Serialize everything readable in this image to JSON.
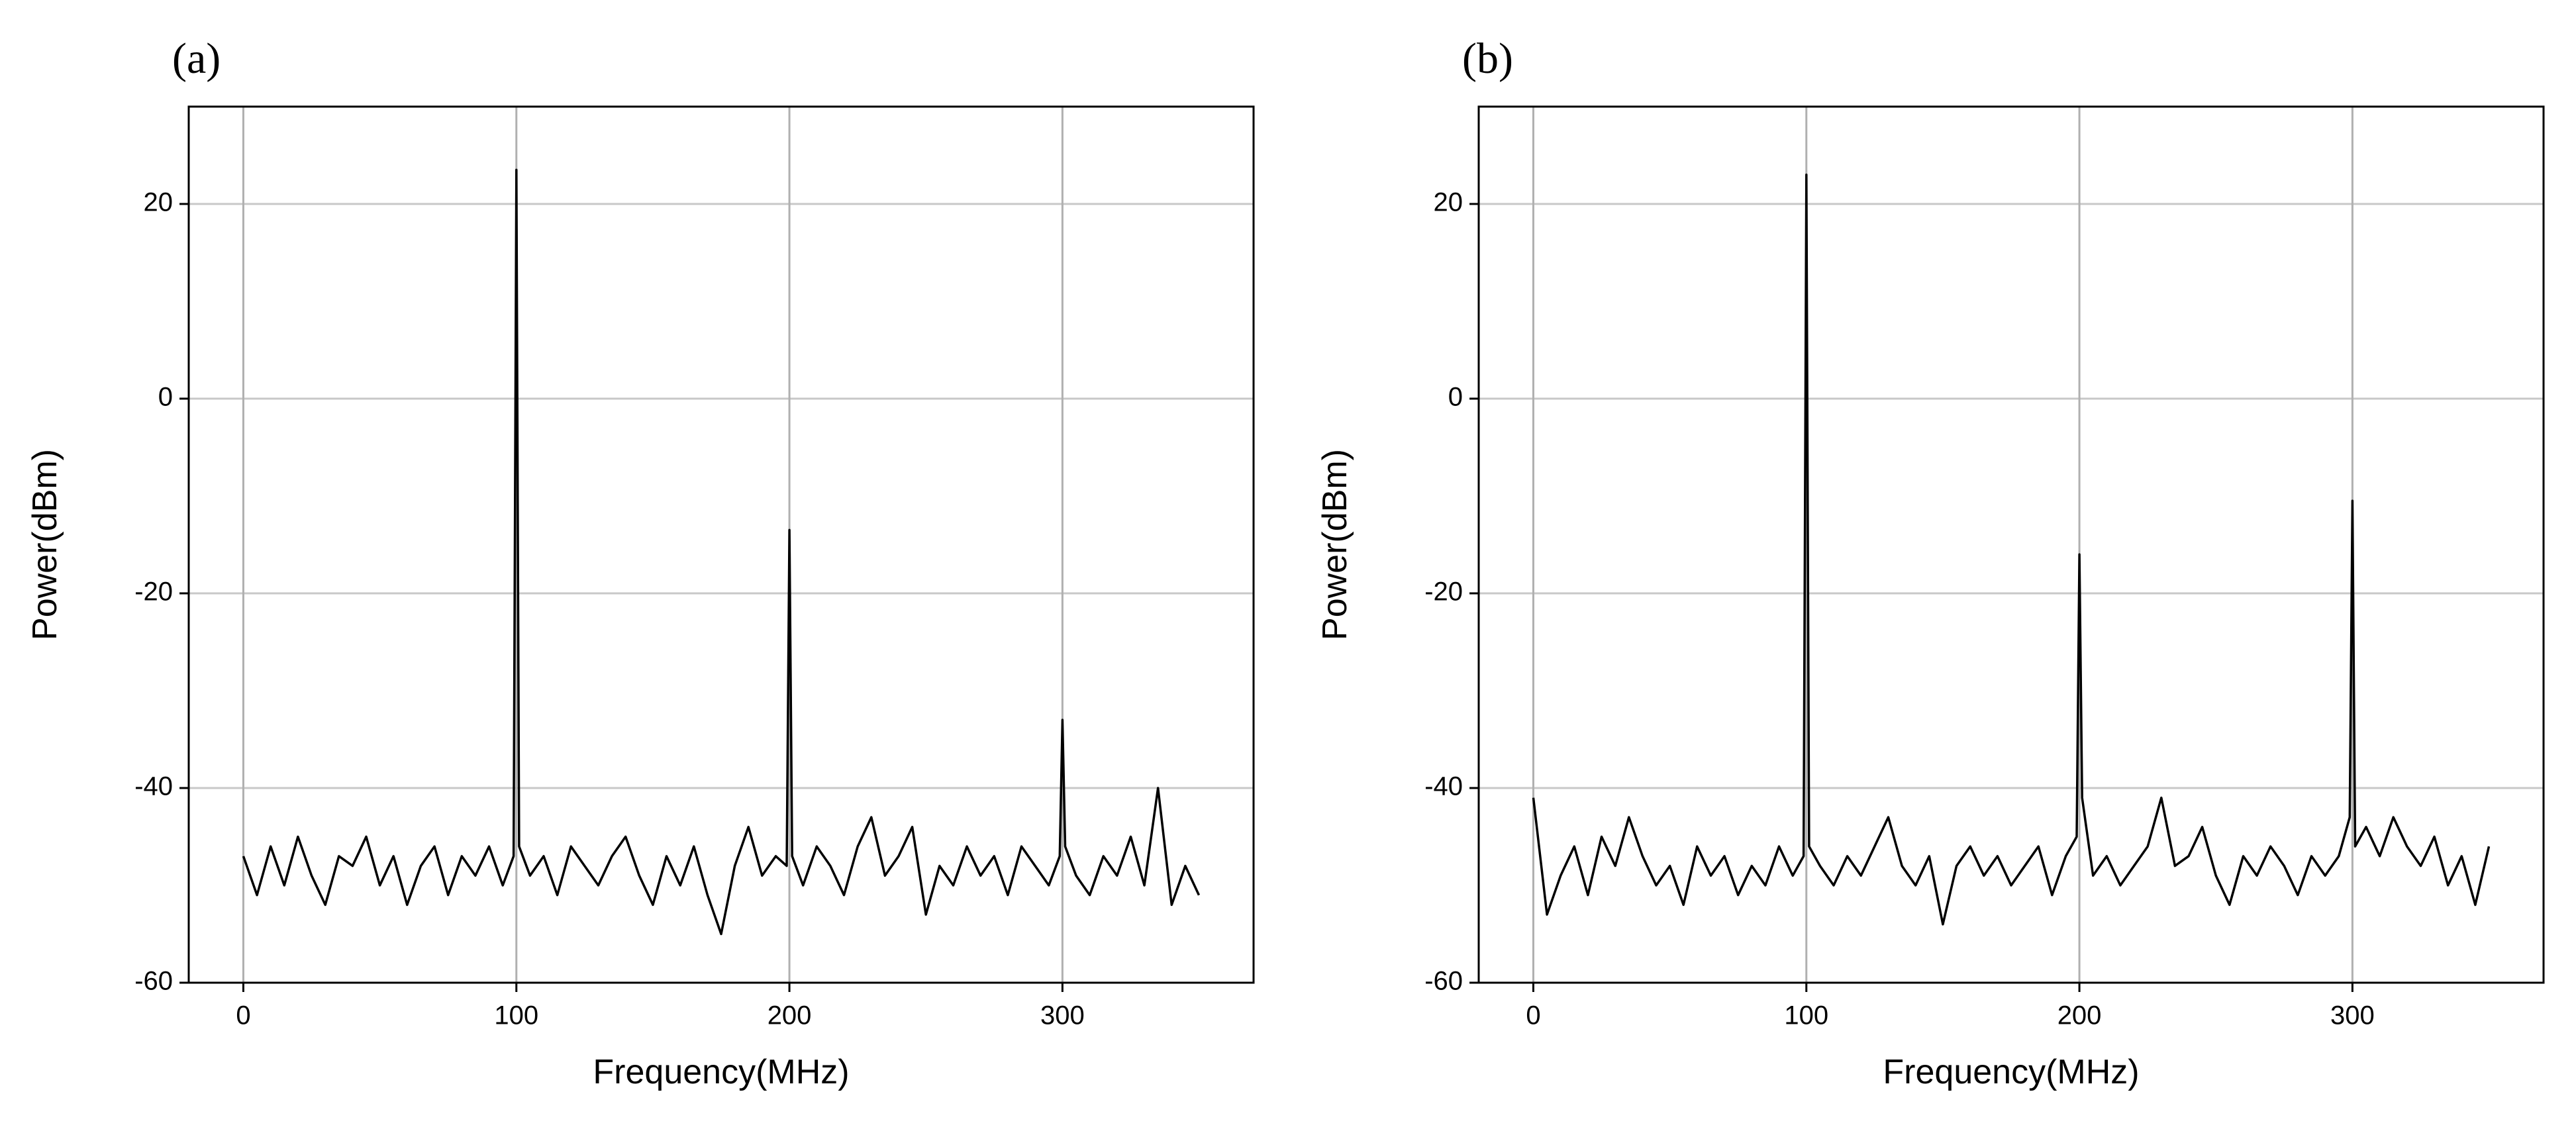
{
  "chart_data": [
    {
      "type": "line",
      "label": "(a)",
      "xlabel": "Frequency(MHz)",
      "ylabel": "Power(dBm)",
      "xlim": [
        -20,
        370
      ],
      "ylim": [
        -60,
        30
      ],
      "xticks": [
        0,
        100,
        200,
        300
      ],
      "yticks": [
        -60,
        -40,
        -20,
        0,
        20
      ],
      "grid": true,
      "series": [
        {
          "color": "#000000",
          "x": [
            0,
            5,
            10,
            15,
            20,
            25,
            30,
            35,
            40,
            45,
            50,
            55,
            60,
            65,
            70,
            75,
            80,
            85,
            90,
            95,
            99,
            100,
            101,
            105,
            110,
            115,
            120,
            125,
            130,
            135,
            140,
            145,
            150,
            155,
            160,
            165,
            170,
            175,
            180,
            185,
            190,
            195,
            199,
            200,
            201,
            205,
            210,
            215,
            220,
            225,
            230,
            235,
            240,
            245,
            250,
            255,
            260,
            265,
            270,
            275,
            280,
            285,
            290,
            295,
            299,
            300,
            301,
            305,
            310,
            315,
            320,
            325,
            330,
            335,
            340,
            345,
            350
          ],
          "values": [
            -47,
            -51,
            -46,
            -50,
            -45,
            -49,
            -52,
            -47,
            -48,
            -45,
            -50,
            -47,
            -52,
            -48,
            -46,
            -51,
            -47,
            -49,
            -46,
            -50,
            -47,
            23.5,
            -46,
            -49,
            -47,
            -51,
            -46,
            -48,
            -50,
            -47,
            -45,
            -49,
            -52,
            -47,
            -50,
            -46,
            -51,
            -55,
            -48,
            -44,
            -49,
            -47,
            -48,
            -13.5,
            -47,
            -50,
            -46,
            -48,
            -51,
            -46,
            -43,
            -49,
            -47,
            -44,
            -53,
            -48,
            -50,
            -46,
            -49,
            -47,
            -51,
            -46,
            -48,
            -50,
            -47,
            -33,
            -46,
            -49,
            -51,
            -47,
            -49,
            -45,
            -50,
            -40,
            -52,
            -48,
            -51
          ]
        }
      ]
    },
    {
      "type": "line",
      "label": "(b)",
      "xlabel": "Frequency(MHz)",
      "ylabel": "Power(dBm)",
      "xlim": [
        -20,
        370
      ],
      "ylim": [
        -60,
        30
      ],
      "xticks": [
        0,
        100,
        200,
        300
      ],
      "yticks": [
        -60,
        -40,
        -20,
        0,
        20
      ],
      "grid": true,
      "series": [
        {
          "color": "#000000",
          "x": [
            0,
            5,
            10,
            15,
            20,
            25,
            30,
            35,
            40,
            45,
            50,
            55,
            60,
            65,
            70,
            75,
            80,
            85,
            90,
            95,
            99,
            100,
            101,
            105,
            110,
            115,
            120,
            125,
            130,
            135,
            140,
            145,
            150,
            155,
            160,
            165,
            170,
            175,
            180,
            185,
            190,
            195,
            199,
            200,
            201,
            205,
            210,
            215,
            220,
            225,
            230,
            235,
            240,
            245,
            250,
            255,
            260,
            265,
            270,
            275,
            280,
            285,
            290,
            295,
            299,
            300,
            301,
            305,
            310,
            315,
            320,
            325,
            330,
            335,
            340,
            345,
            350
          ],
          "values": [
            -41,
            -53,
            -49,
            -46,
            -51,
            -45,
            -48,
            -43,
            -47,
            -50,
            -48,
            -52,
            -46,
            -49,
            -47,
            -51,
            -48,
            -50,
            -46,
            -49,
            -47,
            23,
            -46,
            -48,
            -50,
            -47,
            -49,
            -46,
            -43,
            -48,
            -50,
            -47,
            -54,
            -48,
            -46,
            -49,
            -47,
            -50,
            -48,
            -46,
            -51,
            -47,
            -45,
            -16,
            -41,
            -49,
            -47,
            -50,
            -48,
            -46,
            -41,
            -48,
            -47,
            -44,
            -49,
            -52,
            -47,
            -49,
            -46,
            -48,
            -51,
            -47,
            -49,
            -47,
            -43,
            -10.5,
            -46,
            -44,
            -47,
            -43,
            -46,
            -48,
            -45,
            -50,
            -47,
            -52,
            -46
          ]
        }
      ]
    }
  ]
}
